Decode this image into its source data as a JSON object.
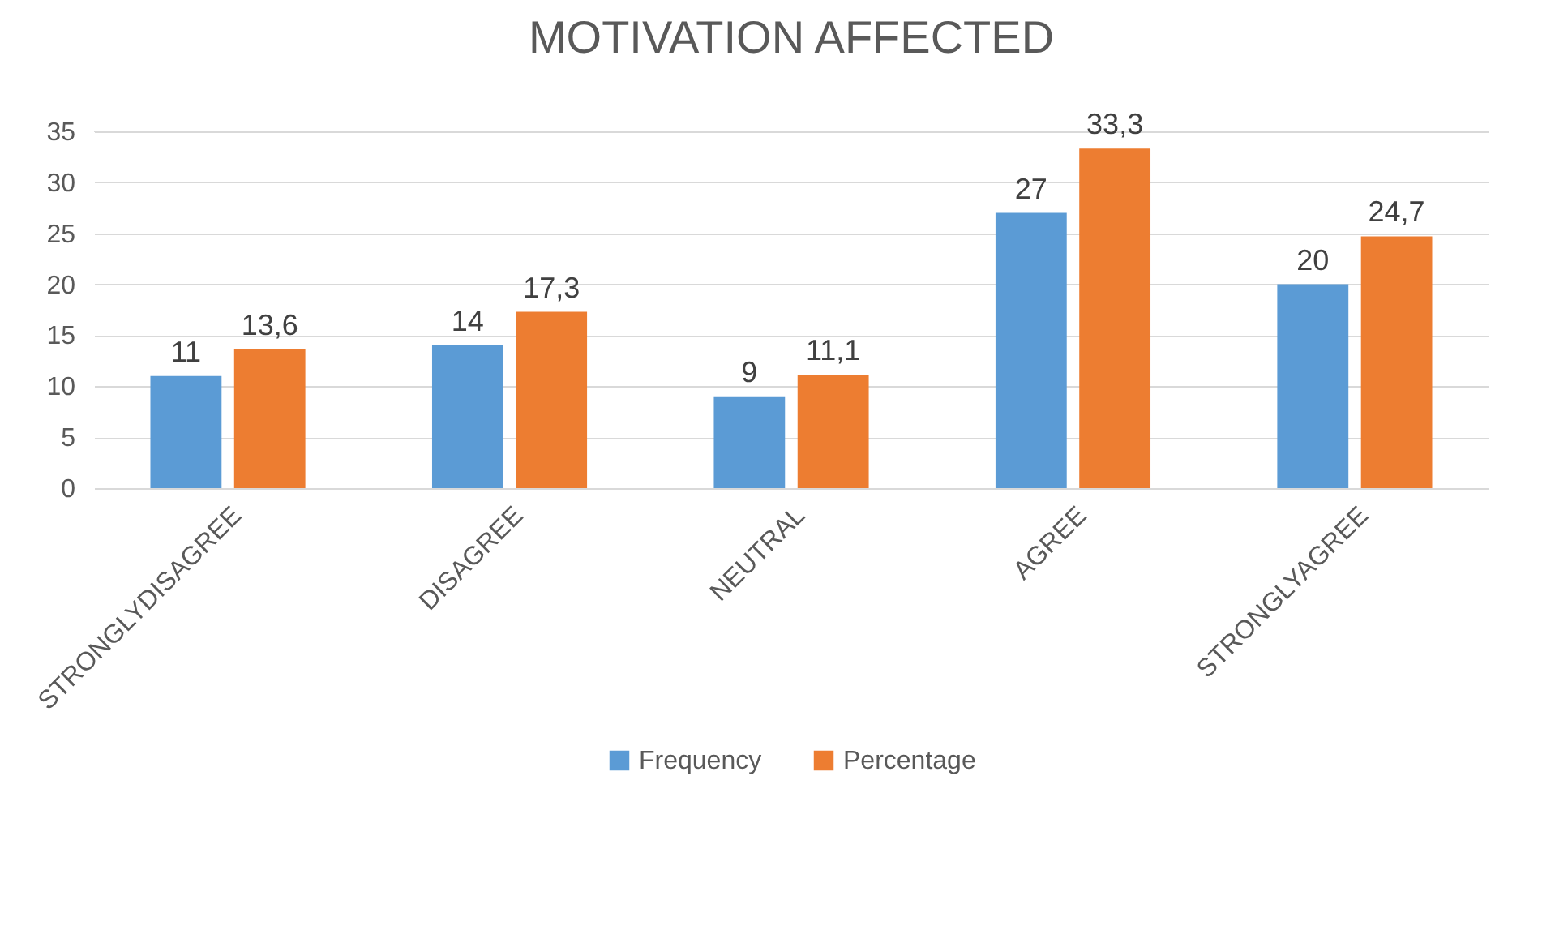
{
  "chart_data": {
    "type": "bar",
    "title": "MOTIVATION AFFECTED",
    "categories": [
      "STRONGLYDISAGREE",
      "DISAGREE",
      "NEUTRAL",
      "AGREE",
      "STRONGLYAGREE"
    ],
    "series": [
      {
        "name": "Frequency",
        "color": "#5b9bd5",
        "values": [
          11,
          14,
          9,
          27,
          20
        ],
        "value_labels": [
          "11",
          "14",
          "9",
          "27",
          "20"
        ]
      },
      {
        "name": "Percentage",
        "color": "#ed7d31",
        "values": [
          13.6,
          17.3,
          11.1,
          33.3,
          24.7
        ],
        "value_labels": [
          "13,6",
          "17,3",
          "11,1",
          "33,3",
          "24,7"
        ]
      }
    ],
    "ylim": [
      0,
      35
    ],
    "yticks": [
      0,
      5,
      10,
      15,
      20,
      25,
      30,
      35
    ],
    "grid": "y",
    "legend": "bottom"
  }
}
